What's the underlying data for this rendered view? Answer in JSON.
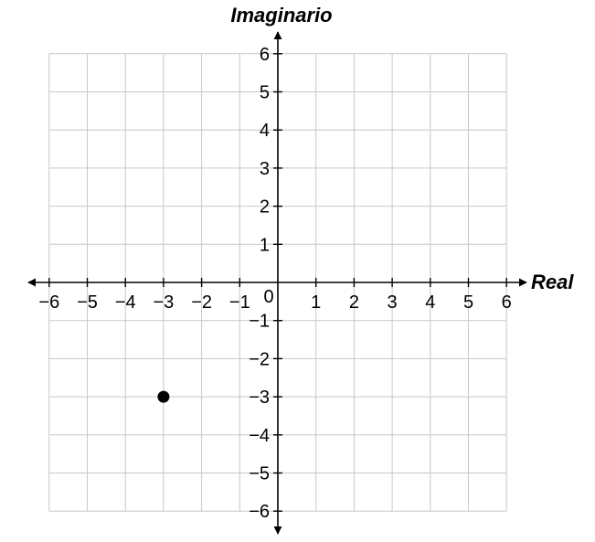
{
  "chart_data": {
    "type": "scatter",
    "xlabel": "Real",
    "ylabel": "Imaginario",
    "xlim": [
      -6,
      6
    ],
    "ylim": [
      -6,
      6
    ],
    "grid": true,
    "x_ticks": [
      "−6",
      "−5",
      "−4",
      "−3",
      "−2",
      "−1",
      "1",
      "2",
      "3",
      "4",
      "5",
      "6"
    ],
    "y_ticks": [
      "6",
      "5",
      "4",
      "3",
      "2",
      "1",
      "−1",
      "−2",
      "−3",
      "−4",
      "−5",
      "−6"
    ],
    "origin_label": "0",
    "points": [
      {
        "x": -3,
        "y": -3
      }
    ],
    "colors": {
      "grid": "#c8c8c8",
      "axis": "#000000",
      "point": "#000000"
    }
  }
}
